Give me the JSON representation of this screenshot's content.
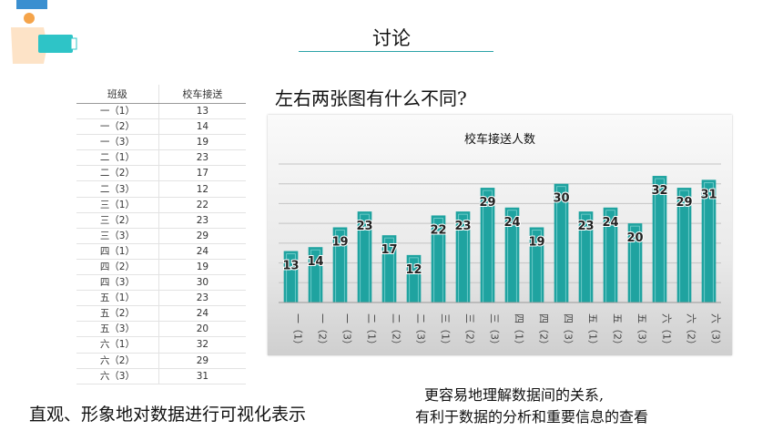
{
  "slide": {
    "title": "讨论",
    "question": "左右两张图有什么不同?",
    "bottom_left": "直观、形象地对数据进行可视化表示",
    "bottom_right_line1": "更容易地理解数据间的关系,",
    "bottom_right_line2": "有利于数据的分析和重要信息的查看",
    "accent_color": "#2aa3a8"
  },
  "table": {
    "headers": [
      "班级",
      "校车接送"
    ],
    "rows": [
      [
        "一（1）",
        "13"
      ],
      [
        "一（2）",
        "14"
      ],
      [
        "一（3）",
        "19"
      ],
      [
        "二（1）",
        "23"
      ],
      [
        "二（2）",
        "17"
      ],
      [
        "二（3）",
        "12"
      ],
      [
        "三（1）",
        "22"
      ],
      [
        "三（2）",
        "23"
      ],
      [
        "三（3）",
        "29"
      ],
      [
        "四（1）",
        "24"
      ],
      [
        "四（2）",
        "19"
      ],
      [
        "四（3）",
        "30"
      ],
      [
        "五（1）",
        "23"
      ],
      [
        "五（2）",
        "24"
      ],
      [
        "五（3）",
        "20"
      ],
      [
        "六（1）",
        "32"
      ],
      [
        "六（2）",
        "29"
      ],
      [
        "六（3）",
        "31"
      ]
    ]
  },
  "chart_data": {
    "type": "bar",
    "title": "校车接送人数",
    "categories": [
      "一（1）",
      "一（2）",
      "一（3）",
      "二（1）",
      "二（2）",
      "二（3）",
      "三（1）",
      "三（2）",
      "三（3）",
      "四（1）",
      "四（2）",
      "四（3）",
      "五（1）",
      "五（2）",
      "五（3）",
      "六（1）",
      "六（2）",
      "六（3）"
    ],
    "values": [
      13,
      14,
      19,
      23,
      17,
      12,
      22,
      23,
      29,
      24,
      19,
      30,
      23,
      24,
      20,
      32,
      29,
      31
    ],
    "ylim": [
      0,
      35
    ],
    "grid": true,
    "data_labels": true,
    "bar_color": "#1fa3a0",
    "label_color": "#222222"
  }
}
